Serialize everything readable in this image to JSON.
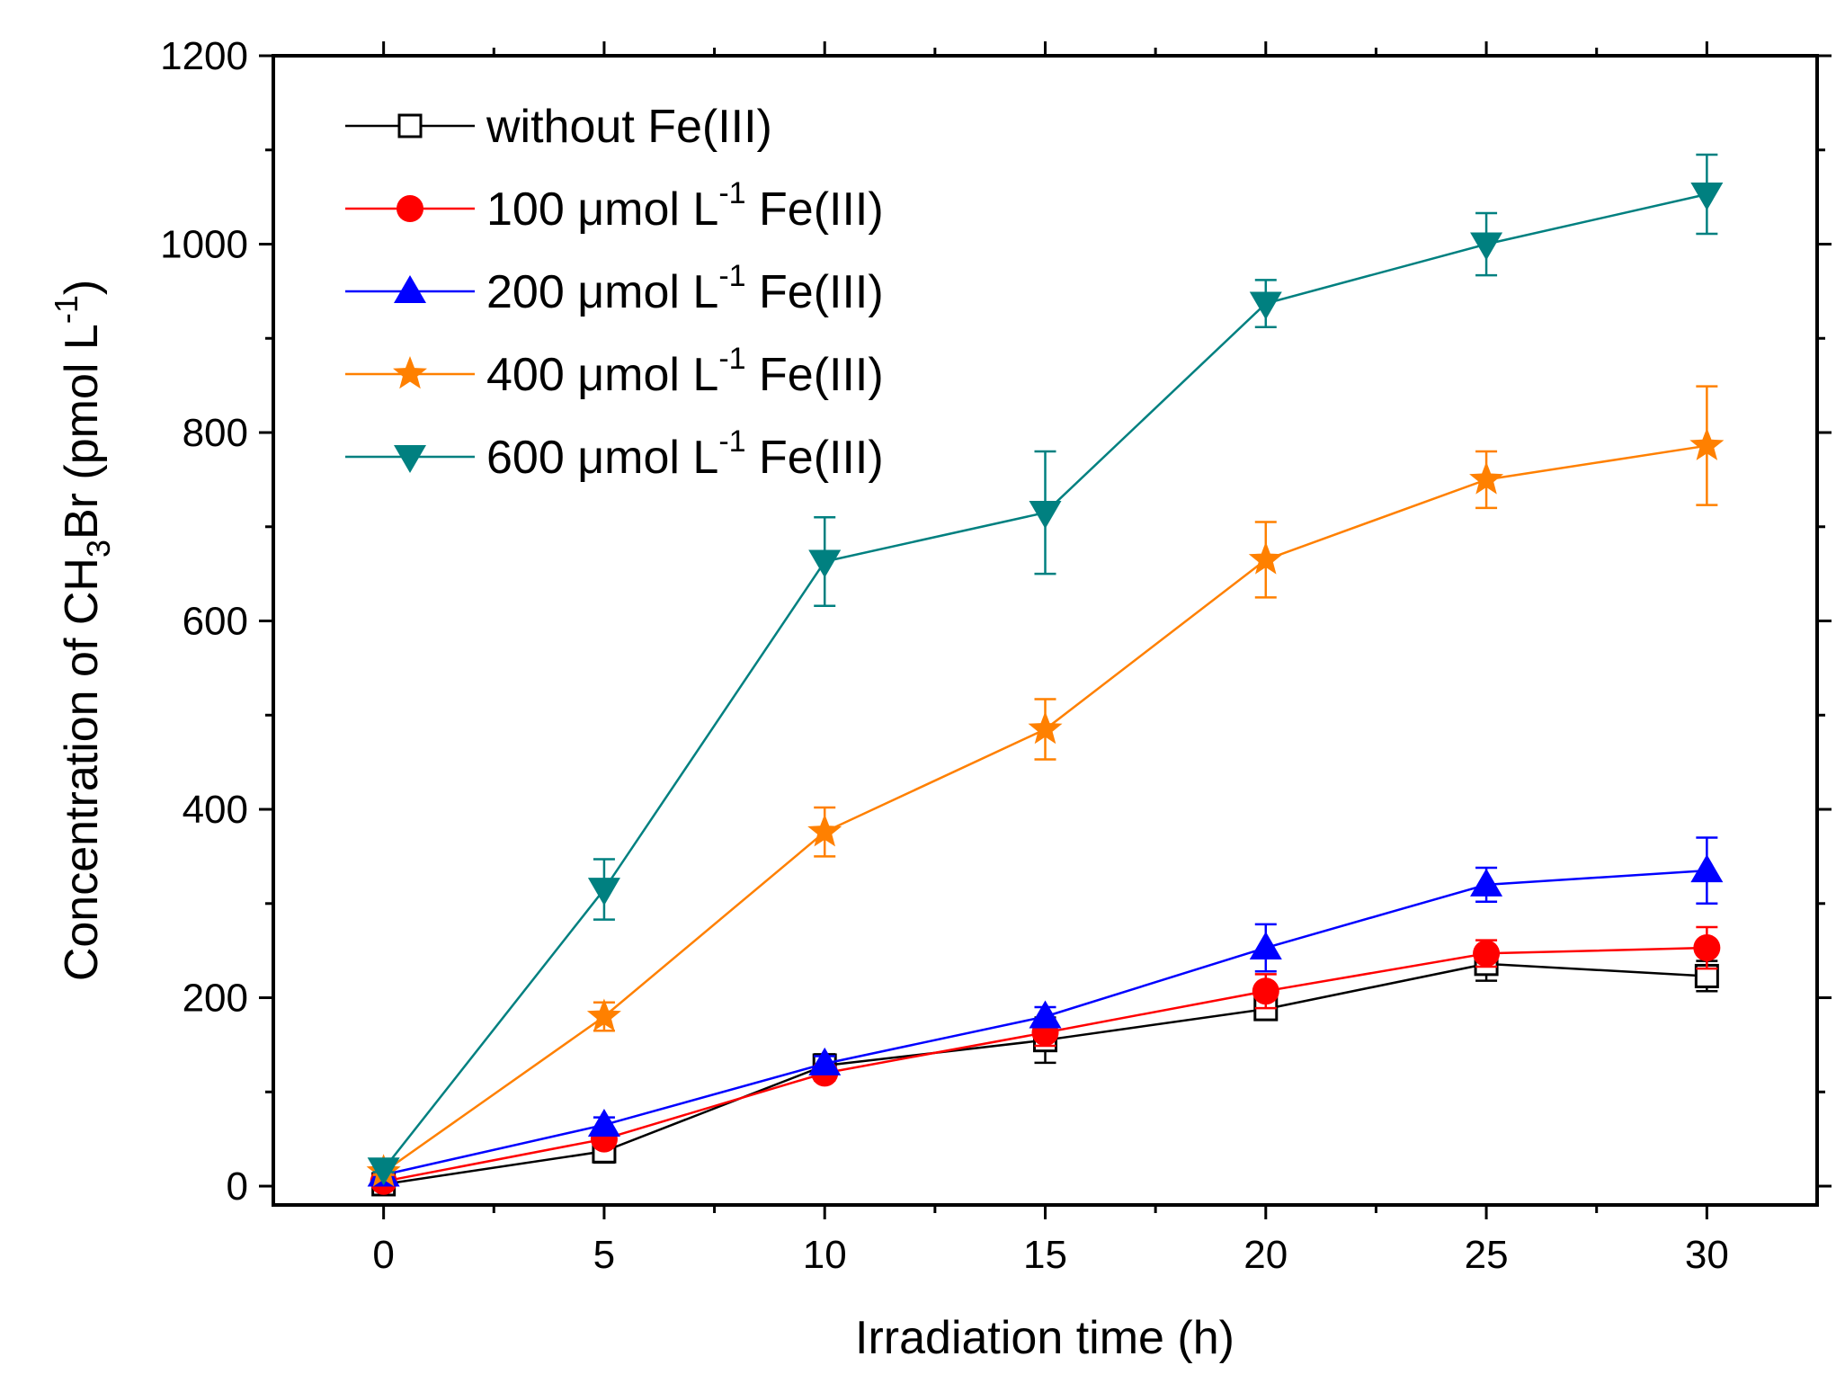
{
  "chart_data": {
    "type": "line",
    "xlabel": "Irradiation time (h)",
    "ylabel": {
      "prefix": "Concentration of CH",
      "sub": "3",
      "mid": "Br (pmol L",
      "sup": "-1",
      "suffix": ")"
    },
    "xlim": [
      -2.5,
      32.5
    ],
    "ylim": [
      -20,
      1200
    ],
    "x_ticks": [
      0,
      5,
      10,
      15,
      20,
      25,
      30
    ],
    "y_ticks": [
      0,
      200,
      400,
      600,
      800,
      1000,
      1200
    ],
    "x": [
      0,
      5,
      10,
      15,
      20,
      25,
      30
    ],
    "series": [
      {
        "name": "without Fe(III)",
        "legend": {
          "pre": "without Fe(III)",
          "sup": "",
          "post": ""
        },
        "color": "#000000",
        "marker": "open-square",
        "values": [
          2,
          37,
          128,
          155,
          188,
          236,
          223
        ],
        "errors": [
          3,
          12,
          12,
          24,
          10,
          18,
          16
        ]
      },
      {
        "name": "100 μmol L-1 Fe(III)",
        "legend": {
          "pre": "100 μmol L",
          "sup": "-1",
          "post": " Fe(III)"
        },
        "color": "#ff0000",
        "marker": "circle",
        "values": [
          5,
          50,
          120,
          163,
          207,
          247,
          253
        ],
        "errors": [
          3,
          8,
          8,
          14,
          18,
          14,
          22
        ]
      },
      {
        "name": "200 μmol L-1 Fe(III)",
        "legend": {
          "pre": "200 μmol L",
          "sup": "-1",
          "post": " Fe(III)"
        },
        "color": "#0000ff",
        "marker": "triangle-up",
        "values": [
          12,
          65,
          130,
          180,
          253,
          320,
          335
        ],
        "errors": [
          3,
          8,
          8,
          10,
          25,
          18,
          35
        ]
      },
      {
        "name": "400 μmol L-1 Fe(III)",
        "legend": {
          "pre": "400 μmol L",
          "sup": "-1",
          "post": " Fe(III)"
        },
        "color": "#ff8000",
        "marker": "star",
        "values": [
          15,
          180,
          376,
          485,
          665,
          750,
          786
        ],
        "errors": [
          3,
          15,
          26,
          32,
          40,
          30,
          63
        ]
      },
      {
        "name": "600 μmol L-1 Fe(III)",
        "legend": {
          "pre": "600 μmol L",
          "sup": "-1",
          "post": " Fe(III)"
        },
        "color": "#008080",
        "marker": "triangle-down",
        "values": [
          18,
          315,
          663,
          715,
          937,
          1000,
          1053
        ],
        "errors": [
          3,
          32,
          47,
          65,
          25,
          33,
          42
        ]
      }
    ],
    "legend_position": "top-left"
  }
}
